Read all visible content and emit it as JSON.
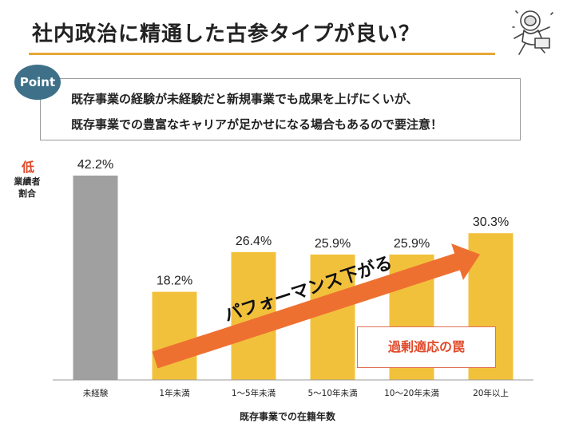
{
  "title": "社内政治に精通した古参タイプが良い？",
  "point": {
    "badge": "Point",
    "line1": "既存事業の経験が未経験だと新規事業でも成果を上げにくいが、",
    "line2": "既存事業での豊富なキャリアが足かせになる場合もあるので要注意！"
  },
  "annotations": {
    "low": "低",
    "ylabel_line1": "業績者",
    "ylabel_line2": "割合",
    "arrow_text": "パフォーマンス下がる",
    "trap": "過剰適応の罠"
  },
  "colors": {
    "title_rule": "#e8a73a",
    "badge": "#3e7189",
    "bar_gray": "#a0a0a0",
    "bar_yellow": "#f2c13c",
    "arrow": "#ee7031",
    "accent_red": "#e04a2a"
  },
  "chart_data": {
    "type": "bar",
    "categories": [
      "未経験",
      "1年未満",
      "1〜5年未満",
      "5〜10年未満",
      "10〜20年未満",
      "20年以上"
    ],
    "values": [
      42.2,
      18.2,
      26.4,
      25.9,
      25.9,
      30.3
    ],
    "value_labels": [
      "42.2%",
      "18.2%",
      "26.4%",
      "25.9%",
      "25.9%",
      "30.3%"
    ],
    "bar_colors": [
      "#a0a0a0",
      "#f2c13c",
      "#f2c13c",
      "#f2c13c",
      "#f2c13c",
      "#f2c13c"
    ],
    "xlabel": "既存事業での在籍年数",
    "ylabel": "業績者割合",
    "ylim": [
      0,
      42.2
    ],
    "grid": false
  }
}
